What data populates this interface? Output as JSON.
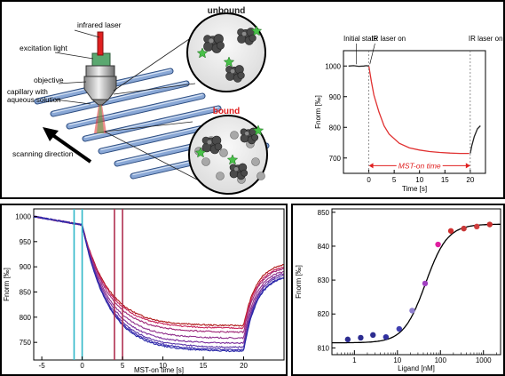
{
  "schematic": {
    "labels": {
      "infrared_laser": "infrared laser",
      "excitation_light": "excitation light",
      "objective": "objective",
      "capillary": "capillary with aqueous solution",
      "scanning_direction": "scanning direction",
      "unbound": "unbound",
      "bound": "bound"
    },
    "colors": {
      "bound_label": "#e02020",
      "ir_laser": "#e02020",
      "excitation": "#3aa860",
      "ligand": "#48c048",
      "capillary": "#6c8fc0"
    }
  },
  "chart_data": [
    {
      "id": "trace",
      "type": "line",
      "title": "",
      "annotations": [
        "Initial state",
        "IR laser on",
        "IR laser on",
        "MST-on time"
      ],
      "xlabel": "Time [s]",
      "ylabel": "Fnorm [‰]",
      "xlim": [
        -5,
        23
      ],
      "ylim": [
        650,
        1050
      ],
      "xticks": [
        0,
        5,
        10,
        15,
        20
      ],
      "yticks": [
        700,
        800,
        900,
        1000
      ],
      "series": [
        {
          "color": "#222222",
          "x": [
            -4,
            -3,
            -2,
            -1,
            -0.5,
            0
          ],
          "y": [
            1000,
            1001,
            999,
            1000,
            1001,
            1000
          ]
        },
        {
          "color": "#e03030",
          "x": [
            0,
            0.5,
            1,
            2,
            3,
            4,
            6,
            8,
            10,
            12,
            14,
            16,
            18,
            19.8
          ],
          "y": [
            1000,
            950,
            905,
            850,
            805,
            778,
            748,
            733,
            726,
            721,
            718,
            716,
            715,
            715
          ]
        },
        {
          "color": "#222222",
          "x": [
            20,
            20.3,
            20.8,
            21.4,
            22
          ],
          "y": [
            715,
            740,
            770,
            795,
            805
          ]
        }
      ]
    },
    {
      "id": "mst-traces",
      "type": "line",
      "title": "",
      "xlabel": "MST-on time [s]",
      "ylabel": "Fnorm [‰]",
      "xlim": [
        -6,
        25
      ],
      "ylim": [
        715,
        1015
      ],
      "xticks": [
        -5,
        0,
        5,
        10,
        15,
        20
      ],
      "yticks": [
        750,
        800,
        850,
        900,
        950,
        1000
      ],
      "markers": [
        {
          "x": -1,
          "color": "#30b8c8"
        },
        {
          "x": 0,
          "color": "#30b8c8"
        },
        {
          "x": 4,
          "color": "#b03050"
        },
        {
          "x": 5,
          "color": "#b03050"
        }
      ],
      "series": [
        {
          "color": "#b01818",
          "plateau": 783,
          "end": 910
        },
        {
          "color": "#c8245a",
          "plateau": 778,
          "end": 905
        },
        {
          "color": "#a02878",
          "plateau": 770,
          "end": 902
        },
        {
          "color": "#90308c",
          "plateau": 758,
          "end": 897
        },
        {
          "color": "#7a2c9a",
          "plateau": 748,
          "end": 893
        },
        {
          "color": "#5a34a8",
          "plateau": 740,
          "end": 890
        },
        {
          "color": "#3a2ab0",
          "plateau": 735,
          "end": 886
        },
        {
          "color": "#2a2aa8",
          "plateau": 732,
          "end": 884
        }
      ]
    },
    {
      "id": "binding",
      "type": "scatter",
      "title": "",
      "xlabel": "Ligand [nM]",
      "ylabel": "Fnorm [‰]",
      "xscale": "log",
      "xlim": [
        0.3,
        2500
      ],
      "ylim": [
        808,
        851
      ],
      "xticks": [
        1,
        10,
        100,
        1000
      ],
      "xticklabels": [
        "1",
        "10",
        "100",
        "1000"
      ],
      "yticks": [
        810,
        820,
        830,
        840,
        850
      ],
      "points": [
        {
          "x": 0.7,
          "y": 812.5,
          "color": "#2c2c90"
        },
        {
          "x": 1.4,
          "y": 813,
          "color": "#2c2c90"
        },
        {
          "x": 2.7,
          "y": 813.8,
          "color": "#2c2c90"
        },
        {
          "x": 5.4,
          "y": 813.2,
          "color": "#3030a0"
        },
        {
          "x": 11,
          "y": 815.6,
          "color": "#4040b0"
        },
        {
          "x": 22,
          "y": 821,
          "color": "#9080d0"
        },
        {
          "x": 44,
          "y": 829,
          "color": "#a040c0"
        },
        {
          "x": 88,
          "y": 840.5,
          "color": "#e020a0"
        },
        {
          "x": 175,
          "y": 844.5,
          "color": "#d03030"
        },
        {
          "x": 350,
          "y": 845.2,
          "color": "#c83838"
        },
        {
          "x": 700,
          "y": 845.8,
          "color": "#d04040"
        },
        {
          "x": 1400,
          "y": 846.4,
          "color": "#c83030"
        }
      ],
      "fit": {
        "bottom": 811.5,
        "top": 846.5,
        "kd": 45,
        "hill": 1.7
      }
    }
  ]
}
